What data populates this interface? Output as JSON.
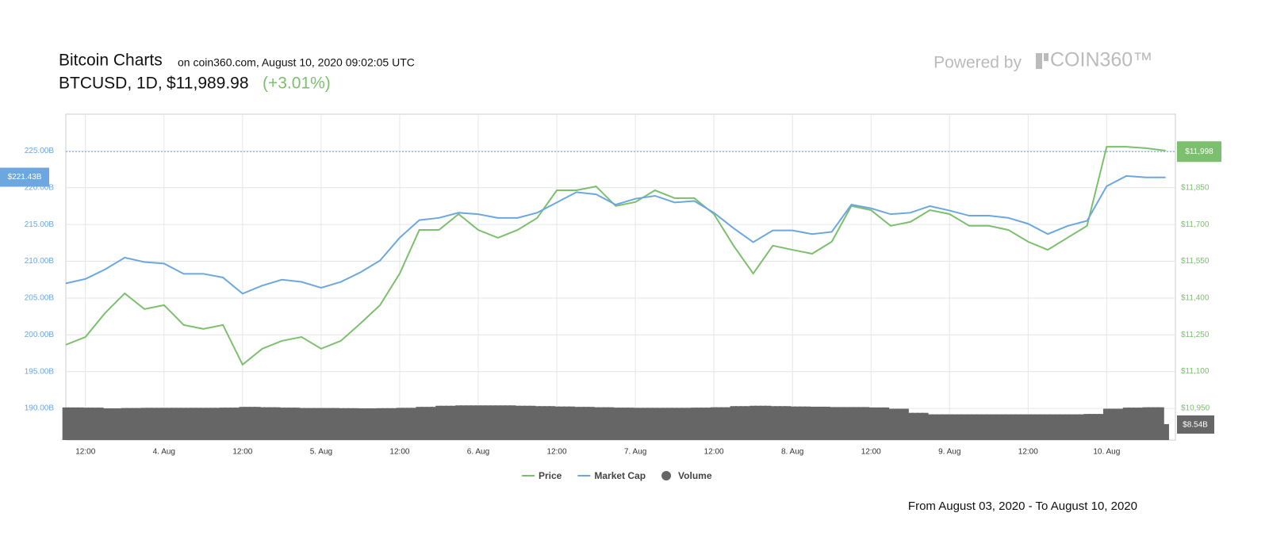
{
  "header": {
    "title": "Bitcoin Charts",
    "source": "on coin360.com, August 10, 2020 09:02:05 UTC",
    "symbol": "BTCUSD, 1D,",
    "price": "$11,989.98",
    "change": "(+3.01%)",
    "powered": "Powered by",
    "brand": "COIN360™"
  },
  "footer": "From August 03, 2020 - To August 10, 2020",
  "chart_data": {
    "type": "line",
    "categories": [
      null,
      "12:00",
      null,
      null,
      null,
      "4. Aug",
      null,
      null,
      null,
      "12:00",
      null,
      null,
      null,
      "5. Aug",
      null,
      null,
      null,
      "12:00",
      null,
      null,
      null,
      "6. Aug",
      null,
      null,
      null,
      "12:00",
      null,
      null,
      null,
      "7. Aug",
      null,
      null,
      null,
      "12:00",
      null,
      null,
      null,
      "8. Aug",
      null,
      null,
      null,
      "12:00",
      null,
      null,
      null,
      "9. Aug",
      null,
      null,
      null,
      "12:00",
      null,
      null,
      null,
      "10. Aug",
      null,
      null,
      null
    ],
    "series": [
      {
        "name": "Price",
        "color": "#7cbf6e",
        "axis": "y2",
        "values": [
          11209,
          11241,
          11339,
          11419,
          11355,
          11371,
          11290,
          11274,
          11290,
          11128,
          11193,
          11225,
          11241,
          11193,
          11225,
          11296,
          11371,
          11500,
          11678,
          11678,
          11743,
          11678,
          11646,
          11678,
          11727,
          11840,
          11840,
          11856,
          11776,
          11792,
          11840,
          11808,
          11808,
          11743,
          11614,
          11500,
          11614,
          11597,
          11581,
          11630,
          11776,
          11759,
          11695,
          11711,
          11759,
          11743,
          11695,
          11695,
          11678,
          11630,
          11597,
          11646,
          11695,
          12018,
          12018,
          12012,
          12002
        ]
      },
      {
        "name": "Market Cap",
        "color": "#6ca7e0",
        "values": [
          207.0,
          207.6,
          208.9,
          210.5,
          209.9,
          209.7,
          208.3,
          208.3,
          207.8,
          205.6,
          206.7,
          207.5,
          207.2,
          206.4,
          207.2,
          208.5,
          210.1,
          213.2,
          215.6,
          215.9,
          216.6,
          216.4,
          215.9,
          215.9,
          216.6,
          218.0,
          219.4,
          219.1,
          217.7,
          218.5,
          218.9,
          218.0,
          218.2,
          216.6,
          214.5,
          212.6,
          214.2,
          214.2,
          213.7,
          214.0,
          217.7,
          217.2,
          216.4,
          216.6,
          217.5,
          216.9,
          216.2,
          216.2,
          215.9,
          215.1,
          213.7,
          214.8,
          215.5,
          220.2,
          221.6,
          221.4,
          221.4
        ]
      },
      {
        "name": "Volume",
        "color": "#666666",
        "axis": "volume",
        "type": "bar",
        "values": [
          17.5,
          17.4,
          17.0,
          17.2,
          17.3,
          17.3,
          17.3,
          17.3,
          17.4,
          17.8,
          17.6,
          17.4,
          17.2,
          17.2,
          17.1,
          17.0,
          17.1,
          17.3,
          17.8,
          18.4,
          18.6,
          18.6,
          18.6,
          18.4,
          18.2,
          18.0,
          17.8,
          17.6,
          17.4,
          17.3,
          17.3,
          17.3,
          17.4,
          17.6,
          18.2,
          18.4,
          18.2,
          18.0,
          17.9,
          17.7,
          17.7,
          17.5,
          16.8,
          14.6,
          13.8,
          13.8,
          13.8,
          13.8,
          13.8,
          13.8,
          13.8,
          13.8,
          14.0,
          16.8,
          17.4,
          17.6,
          8.54
        ]
      }
    ],
    "ylim": [
      185.7,
      230
    ],
    "yticks": [
      {
        "value": 190,
        "label": "190.00B"
      },
      {
        "value": 195,
        "label": "195.00B"
      },
      {
        "value": 200,
        "label": "200.00B"
      },
      {
        "value": 205,
        "label": "205.00B"
      },
      {
        "value": 210,
        "label": "210.00B"
      },
      {
        "value": 215,
        "label": "215.00B"
      },
      {
        "value": 220,
        "label": "220.00B"
      },
      {
        "value": 225,
        "label": "225.00B"
      }
    ],
    "y2lim": [
      10820,
      12151
    ],
    "y2ticks": [
      {
        "value": 10950,
        "label": "$10,950"
      },
      {
        "value": 11100,
        "label": "$11,100"
      },
      {
        "value": 11250,
        "label": "$11,250"
      },
      {
        "value": 11400,
        "label": "$11,400"
      },
      {
        "value": 11550,
        "label": "$11,550"
      },
      {
        "value": 11700,
        "label": "$11,700"
      },
      {
        "value": 11850,
        "label": "$11,850"
      }
    ],
    "vlim": [
      0,
      175
    ],
    "current_cap": {
      "value": 221.43,
      "label": "$221.43B"
    },
    "current_price": {
      "value": 11998,
      "label": "$11,998"
    },
    "last_volume_label": "$8.54B",
    "grid": true
  }
}
